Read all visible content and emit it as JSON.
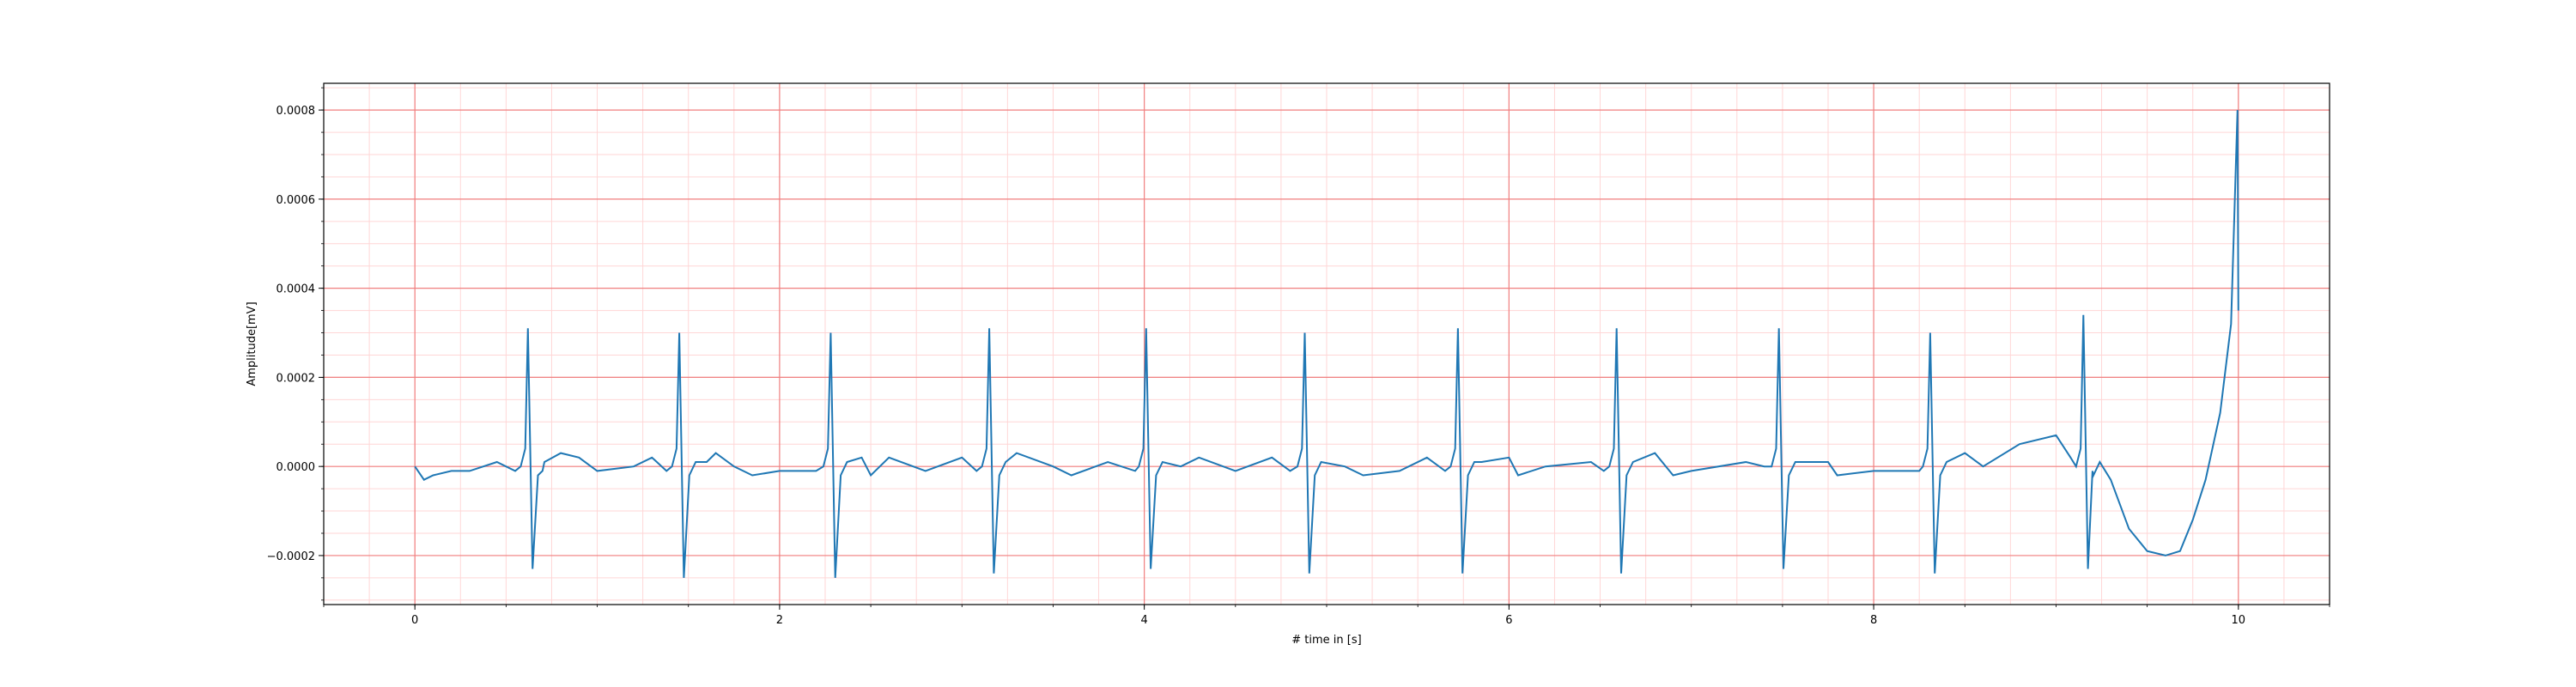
{
  "chart_data": {
    "type": "line",
    "title": "",
    "xlabel": "# time in [s]",
    "ylabel": "Amplitude[mV]",
    "xlim": [
      -0.5,
      10.5
    ],
    "ylim": [
      -0.00031,
      0.00086
    ],
    "x_ticks": [
      0,
      2,
      4,
      6,
      8,
      10
    ],
    "x_tick_labels": [
      "0",
      "2",
      "4",
      "6",
      "8",
      "10"
    ],
    "y_ticks": [
      -0.0002,
      0.0,
      0.0002,
      0.0004,
      0.0006,
      0.0008
    ],
    "y_tick_labels": [
      "−0.0002",
      "0.0000",
      "0.0002",
      "0.0004",
      "0.0006",
      "0.0008"
    ],
    "grid": true,
    "major_grid_color": "#f08080",
    "minor_grid_color": "#ffd6d6",
    "line_color": "#1f77b4",
    "legend": "none",
    "series": [
      {
        "beat_times": [
          0.62,
          1.45,
          2.28,
          3.15,
          4.01,
          4.88,
          5.72,
          6.59,
          7.48,
          8.31,
          9.15
        ],
        "r_peaks": [
          0.00031,
          0.0003,
          0.0003,
          0.00031,
          0.00031,
          0.0003,
          0.00031,
          0.00031,
          0.00031,
          0.0003,
          0.00034
        ],
        "s_troughs": [
          -0.00023,
          -0.00025,
          -0.00025,
          -0.00024,
          -0.00023,
          -0.00024,
          -0.00024,
          -0.00024,
          -0.00023,
          -0.00024,
          -0.00023
        ],
        "baseline_points": [
          [
            0.0,
            0.0
          ],
          [
            0.05,
            -3e-05
          ],
          [
            0.1,
            -2e-05
          ],
          [
            0.2,
            -1e-05
          ],
          [
            0.3,
            -1e-05
          ],
          [
            0.45,
            1e-05
          ],
          [
            0.55,
            -1e-05
          ],
          [
            0.7,
            -1e-05
          ],
          [
            0.8,
            3e-05
          ],
          [
            0.9,
            2e-05
          ],
          [
            1.0,
            -1e-05
          ],
          [
            1.2,
            0.0
          ],
          [
            1.3,
            2e-05
          ],
          [
            1.38,
            -1e-05
          ],
          [
            1.6,
            1e-05
          ],
          [
            1.65,
            3e-05
          ],
          [
            1.75,
            0.0
          ],
          [
            1.85,
            -2e-05
          ],
          [
            2.0,
            -1e-05
          ],
          [
            2.2,
            -1e-05
          ],
          [
            2.45,
            2e-05
          ],
          [
            2.5,
            -2e-05
          ],
          [
            2.6,
            2e-05
          ],
          [
            2.8,
            -1e-05
          ],
          [
            3.0,
            2e-05
          ],
          [
            3.08,
            -1e-05
          ],
          [
            3.3,
            3e-05
          ],
          [
            3.5,
            0.0
          ],
          [
            3.6,
            -2e-05
          ],
          [
            3.8,
            1e-05
          ],
          [
            3.95,
            -1e-05
          ],
          [
            4.2,
            0.0
          ],
          [
            4.3,
            2e-05
          ],
          [
            4.5,
            -1e-05
          ],
          [
            4.7,
            2e-05
          ],
          [
            4.8,
            -1e-05
          ],
          [
            5.1,
            0.0
          ],
          [
            5.2,
            -2e-05
          ],
          [
            5.4,
            -1e-05
          ],
          [
            5.55,
            2e-05
          ],
          [
            5.65,
            -1e-05
          ],
          [
            5.85,
            1e-05
          ],
          [
            6.0,
            2e-05
          ],
          [
            6.05,
            -2e-05
          ],
          [
            6.2,
            0.0
          ],
          [
            6.45,
            1e-05
          ],
          [
            6.52,
            -1e-05
          ],
          [
            6.8,
            3e-05
          ],
          [
            6.9,
            -2e-05
          ],
          [
            7.0,
            -1e-05
          ],
          [
            7.3,
            1e-05
          ],
          [
            7.4,
            0.0
          ],
          [
            7.6,
            1e-05
          ],
          [
            7.75,
            1e-05
          ],
          [
            7.8,
            -2e-05
          ],
          [
            8.0,
            -1e-05
          ],
          [
            8.2,
            -1e-05
          ],
          [
            8.25,
            -1e-05
          ],
          [
            8.5,
            3e-05
          ],
          [
            8.6,
            0.0
          ],
          [
            8.8,
            5e-05
          ],
          [
            9.0,
            7e-05
          ],
          [
            9.08,
            2e-05
          ]
        ],
        "tail_points": [
          [
            9.2,
            -1e-05
          ],
          [
            9.3,
            -3e-05
          ],
          [
            9.4,
            -0.00014
          ],
          [
            9.5,
            -0.00019
          ],
          [
            9.6,
            -0.0002
          ],
          [
            9.68,
            -0.00019
          ],
          [
            9.75,
            -0.00012
          ],
          [
            9.82,
            -3e-05
          ],
          [
            9.9,
            0.00012
          ],
          [
            9.96,
            0.00032
          ],
          [
            9.995,
            0.0008
          ],
          [
            10.0,
            0.00035
          ]
        ]
      }
    ]
  }
}
